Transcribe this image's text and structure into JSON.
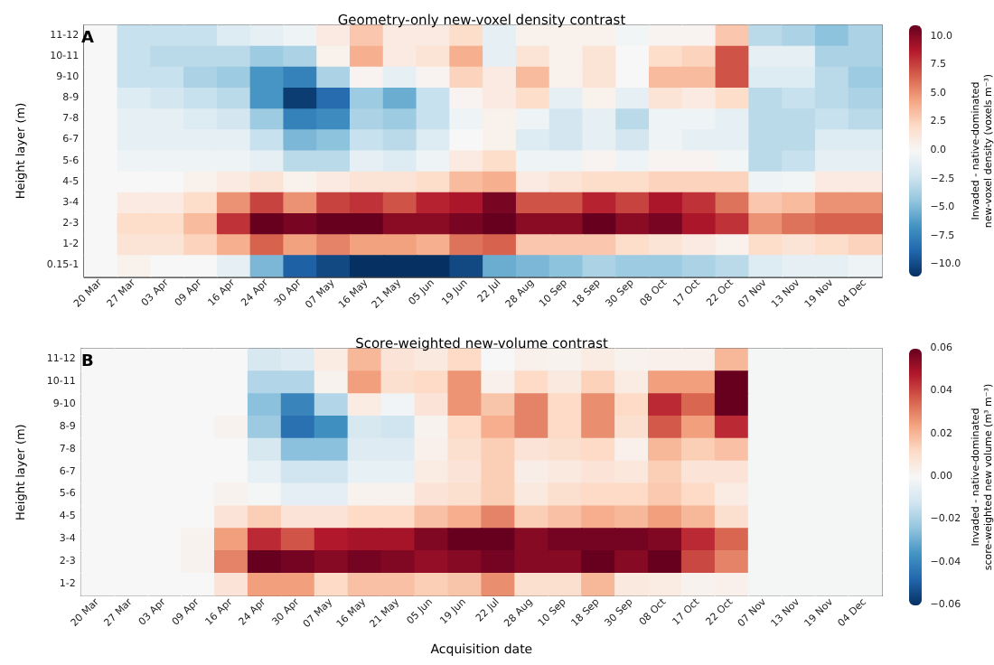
{
  "chart_data": [
    {
      "type": "heatmap",
      "title": "Geometry-only new-voxel density contrast",
      "ylabel": "Height layer (m)",
      "clabel": "Invaded - native-dominated\nnew-voxel density (voxels m⁻³)",
      "annotations": [
        "A"
      ],
      "categories": [
        "20 Mar",
        "27 Mar",
        "03 Apr",
        "09 Apr",
        "16 Apr",
        "24 Apr",
        "30 Apr",
        "07 May",
        "16 May",
        "21 May",
        "05 Jun",
        "19 Jun",
        "22 Jul",
        "28 Aug",
        "10 Sep",
        "18 Sep",
        "30 Sep",
        "08 Oct",
        "17 Oct",
        "22 Oct",
        "07 Nov",
        "13 Nov",
        "19 Nov",
        "04 Dec"
      ],
      "y_categories": [
        "11-12",
        "10-11",
        "9-10",
        "8-9",
        "7-8",
        "6-7",
        "5-6",
        "4-5",
        "3-4",
        "2-3",
        "1-2",
        "0.15-1"
      ],
      "cells": [
        [
          0,
          -2.5,
          -2.5,
          -2.5,
          -1.5,
          -1,
          -0.5,
          1,
          3,
          1,
          1,
          2,
          -1,
          0.5,
          0.5,
          0.5,
          -0.3,
          0.3,
          0.3,
          3,
          -3,
          -3.5,
          -4.5,
          -3.5
        ],
        [
          0,
          -2.5,
          -3,
          -3,
          -3,
          -4,
          -3.5,
          0.5,
          4,
          1,
          1.5,
          4,
          -1,
          1.5,
          0.5,
          1.5,
          0,
          2,
          2.5,
          7,
          -1,
          -1,
          -3.5,
          -3.5
        ],
        [
          0,
          -2.5,
          -2.5,
          -3.5,
          -4,
          -6.5,
          -7.5,
          -3.5,
          0.3,
          -1,
          0.3,
          2.5,
          1,
          3.5,
          0.5,
          1.5,
          0,
          3.5,
          3.5,
          7,
          -1.5,
          -1.5,
          -3,
          -4
        ],
        [
          0,
          -1.5,
          -2,
          -2.5,
          -3,
          -6.5,
          -10.5,
          -8.5,
          -4,
          -5.5,
          -2.5,
          0.3,
          1,
          2,
          -1,
          0.5,
          -1,
          1.5,
          1,
          2,
          -3,
          -2.5,
          -3,
          -3.5
        ],
        [
          0,
          -1,
          -1,
          -1.5,
          -2,
          -4,
          -7.5,
          -7,
          -3.5,
          -4,
          -2.5,
          -0.5,
          0.5,
          -0.5,
          -2,
          -1,
          -3,
          -0.5,
          -0.5,
          -1,
          -3,
          -3,
          -2.5,
          -3
        ],
        [
          0,
          -1,
          -1,
          -1,
          -1,
          -2.5,
          -5,
          -4.5,
          -2.5,
          -3,
          -1.5,
          0,
          0.5,
          -1.5,
          -2,
          -1,
          -2,
          -0.5,
          -1,
          -1,
          -3,
          -3,
          -1.5,
          -1.5
        ],
        [
          0,
          -0.5,
          -0.5,
          -0.5,
          -0.5,
          -1,
          -3,
          -3,
          -1,
          -1.5,
          -0.5,
          1,
          2,
          -0.5,
          -0.5,
          0.3,
          -0.5,
          0.3,
          0.3,
          -0.3,
          -3,
          -2.5,
          -1,
          -1
        ],
        [
          0,
          0,
          0,
          0.5,
          1,
          1.5,
          0.5,
          1,
          1.5,
          1.5,
          2,
          3.5,
          4,
          1,
          1.5,
          2,
          2,
          2.5,
          2.5,
          2.5,
          -0.5,
          -0.3,
          1,
          1
        ],
        [
          0,
          1,
          1,
          2,
          5,
          7.5,
          5,
          7.5,
          8,
          7,
          8.5,
          9,
          10.5,
          7,
          7,
          8.5,
          7.5,
          9,
          8,
          6,
          3,
          3.5,
          5,
          5
        ],
        [
          0,
          2,
          2,
          3.5,
          8,
          11,
          10.5,
          11,
          11,
          10,
          10,
          10.5,
          11,
          10,
          10,
          11,
          10,
          10.5,
          9,
          8,
          5,
          6,
          6.5,
          6.5
        ],
        [
          0,
          1.5,
          1.5,
          2.5,
          4,
          6.5,
          4.5,
          5.5,
          4.5,
          4.5,
          4,
          6,
          6.5,
          3,
          3,
          3,
          2,
          1.5,
          1,
          0.5,
          2,
          1.5,
          2,
          2.5
        ],
        [
          0,
          0.5,
          0,
          0,
          -1,
          -5,
          -9,
          -10,
          -11,
          -11,
          -11,
          -10,
          -5.5,
          -5,
          -4.5,
          -3.5,
          -4,
          -4,
          -3.5,
          -3,
          -1.5,
          -1,
          -1,
          -0.5
        ]
      ],
      "clim": [
        -11,
        11
      ],
      "cticks": [
        {
          "value": -10,
          "label": "−10.0"
        },
        {
          "value": -7.5,
          "label": "−7.5"
        },
        {
          "value": -5,
          "label": "−5.0"
        },
        {
          "value": -2.5,
          "label": "−2.5"
        },
        {
          "value": 0,
          "label": "0.0"
        },
        {
          "value": 2.5,
          "label": "2.5"
        },
        {
          "value": 5,
          "label": "5.0"
        },
        {
          "value": 7.5,
          "label": "7.5"
        },
        {
          "value": 10,
          "label": "10.0"
        }
      ]
    },
    {
      "type": "heatmap",
      "title": "Score-weighted new-volume contrast",
      "xlabel": "Acquisition date",
      "ylabel": "Height layer (m)",
      "clabel": "Invaded - native-dominated\nscore-weighted new volume (m³ m⁻³)",
      "annotations": [
        "B"
      ],
      "categories": [
        "20 Mar",
        "27 Mar",
        "03 Apr",
        "09 Apr",
        "16 Apr",
        "24 Apr",
        "30 Apr",
        "07 May",
        "16 May",
        "21 May",
        "05 Jun",
        "19 Jun",
        "22 Jul",
        "28 Aug",
        "10 Sep",
        "18 Sep",
        "30 Sep",
        "08 Oct",
        "17 Oct",
        "22 Oct",
        "07 Nov",
        "13 Nov",
        "19 Nov",
        "04 Dec"
      ],
      "y_categories": [
        "11-12",
        "10-11",
        "9-10",
        "8-9",
        "7-8",
        "6-7",
        "5-6",
        "4-5",
        "3-4",
        "2-3",
        "1-2"
      ],
      "cells": [
        [
          0,
          0,
          0,
          0,
          0,
          -0.01,
          -0.008,
          0.005,
          0.02,
          0.008,
          0.006,
          0.012,
          0,
          0.003,
          0.002,
          0.005,
          0.002,
          0.003,
          0.003,
          0.02,
          -0.001,
          -0.001,
          -0.001,
          -0.001
        ],
        [
          0,
          0,
          0,
          0,
          0,
          -0.018,
          -0.018,
          0.002,
          0.025,
          0.01,
          0.012,
          0.027,
          0.003,
          0.012,
          0.006,
          0.014,
          0.005,
          0.025,
          0.025,
          0.06,
          -0.001,
          -0.001,
          -0.001,
          -0.001
        ],
        [
          0,
          0,
          0,
          0,
          0,
          -0.025,
          -0.04,
          -0.018,
          0.005,
          -0.002,
          0.008,
          0.027,
          0.017,
          0.03,
          0.012,
          0.028,
          0.012,
          0.045,
          0.035,
          0.06,
          -0.001,
          -0.001,
          -0.001,
          -0.001
        ],
        [
          0,
          0,
          0,
          0,
          0.002,
          -0.022,
          -0.045,
          -0.037,
          -0.01,
          -0.012,
          0.002,
          0.012,
          0.022,
          0.03,
          0.012,
          0.028,
          0.01,
          0.037,
          0.025,
          0.045,
          -0.001,
          -0.001,
          -0.001,
          -0.001
        ],
        [
          0,
          0,
          0,
          0,
          0,
          -0.01,
          -0.025,
          -0.025,
          -0.008,
          -0.008,
          0.003,
          0.01,
          0.015,
          0.008,
          0.01,
          0.012,
          0.003,
          0.02,
          0.015,
          0.018,
          -0.001,
          -0.001,
          -0.001,
          -0.001
        ],
        [
          0,
          0,
          0,
          0,
          0,
          -0.005,
          -0.012,
          -0.012,
          -0.005,
          -0.005,
          0.005,
          0.008,
          0.015,
          0.004,
          0.006,
          0.008,
          0.007,
          0.015,
          0.008,
          0.008,
          -0.001,
          -0.001,
          -0.001,
          -0.001
        ],
        [
          0,
          0,
          0,
          0,
          0.002,
          -0.001,
          -0.006,
          -0.006,
          0.002,
          0.002,
          0.008,
          0.01,
          0.015,
          0.006,
          0.01,
          0.012,
          0.012,
          0.016,
          0.012,
          0.005,
          -0.001,
          -0.001,
          -0.001,
          -0.001
        ],
        [
          0,
          0,
          0,
          0,
          0.008,
          0.015,
          0.008,
          0.008,
          0.012,
          0.012,
          0.018,
          0.022,
          0.03,
          0.015,
          0.018,
          0.022,
          0.02,
          0.025,
          0.02,
          0.01,
          -0.001,
          -0.001,
          -0.001,
          -0.001
        ],
        [
          0,
          0,
          0,
          0.002,
          0.025,
          0.045,
          0.038,
          0.048,
          0.05,
          0.05,
          0.056,
          0.06,
          0.06,
          0.055,
          0.058,
          0.058,
          0.058,
          0.056,
          0.045,
          0.035,
          -0.001,
          -0.001,
          -0.001,
          -0.001
        ],
        [
          0,
          0,
          0,
          0.002,
          0.03,
          0.06,
          0.058,
          0.055,
          0.058,
          0.056,
          0.053,
          0.055,
          0.058,
          0.055,
          0.055,
          0.06,
          0.055,
          0.06,
          0.04,
          0.03,
          -0.001,
          -0.001,
          -0.001,
          -0.001
        ],
        [
          0,
          0,
          0,
          0,
          0.008,
          0.025,
          0.025,
          0.012,
          0.018,
          0.018,
          0.015,
          0.017,
          0.028,
          0.01,
          0.01,
          0.02,
          0.006,
          0.005,
          0.002,
          0.003,
          -0.001,
          -0.001,
          -0.001,
          -0.001
        ]
      ],
      "clim": [
        -0.06,
        0.06
      ],
      "cticks": [
        {
          "value": -0.06,
          "label": "−0.06"
        },
        {
          "value": -0.04,
          "label": "−0.04"
        },
        {
          "value": -0.02,
          "label": "−0.02"
        },
        {
          "value": 0,
          "label": "0.00"
        },
        {
          "value": 0.02,
          "label": "0.02"
        },
        {
          "value": 0.04,
          "label": "0.04"
        },
        {
          "value": 0.06,
          "label": "0.06"
        }
      ]
    }
  ]
}
